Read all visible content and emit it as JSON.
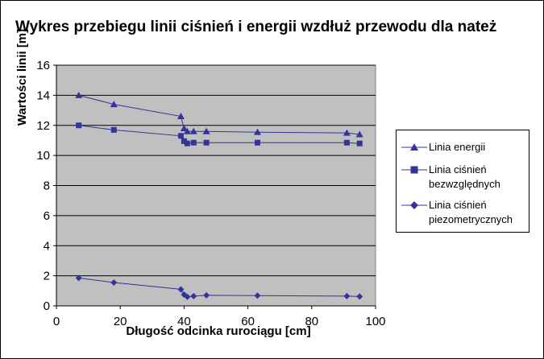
{
  "chart_data": {
    "type": "line",
    "title": "Wykres przebiegu linii ciśnień i energii wzdłuż przewodu dla nateż",
    "xlabel": "Długość odcinka rurociągu [cm]",
    "ylabel": "Wartości linii [m]",
    "xlim": [
      0,
      100
    ],
    "ylim": [
      0,
      16
    ],
    "x_ticks": [
      "0",
      "20",
      "40",
      "60",
      "80",
      "100"
    ],
    "y_ticks": [
      "0",
      "2",
      "4",
      "6",
      "8",
      "10",
      "12",
      "14",
      "16"
    ],
    "grid": "horizontal",
    "legend_position": "right",
    "plot_background": "#c0c0c0",
    "series_color": "#333399",
    "series": [
      {
        "name": "Linia energii",
        "marker": "triangle",
        "x": [
          7,
          18,
          39,
          40,
          41,
          43,
          47,
          63,
          91,
          95
        ],
        "y": [
          14.0,
          13.4,
          12.6,
          11.8,
          11.6,
          11.6,
          11.6,
          11.55,
          11.5,
          11.4
        ]
      },
      {
        "name": "Linia ciśnień bezwzględnych",
        "marker": "square",
        "x": [
          7,
          18,
          39,
          40,
          41,
          43,
          47,
          63,
          91,
          95
        ],
        "y": [
          12.0,
          11.7,
          11.3,
          10.95,
          10.8,
          10.85,
          10.85,
          10.85,
          10.85,
          10.8
        ]
      },
      {
        "name": "Linia ciśnień piezometrycznych",
        "marker": "diamond",
        "x": [
          7,
          18,
          39,
          40,
          41,
          43,
          47,
          63,
          91,
          95
        ],
        "y": [
          1.85,
          1.55,
          1.1,
          0.75,
          0.6,
          0.65,
          0.7,
          0.68,
          0.65,
          0.62
        ]
      }
    ]
  }
}
